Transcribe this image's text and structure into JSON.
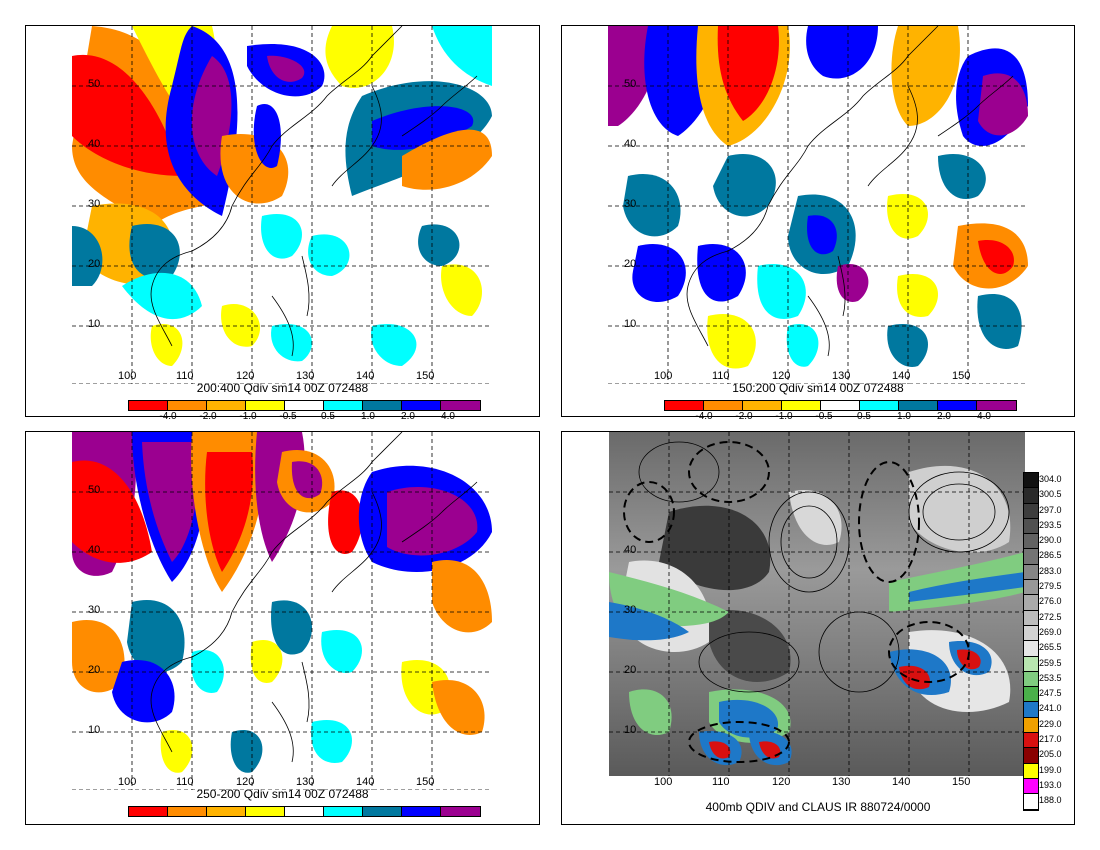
{
  "panels": [
    {
      "title": "200:400 Qdiv sm14 00Z 072488",
      "lat_labels": [
        "50",
        "40",
        "30",
        "20",
        "10"
      ],
      "lon_labels": [
        "100",
        "110",
        "120",
        "130",
        "140",
        "150"
      ]
    },
    {
      "title": "150:200 Qdiv sm14 00Z 072488",
      "lat_labels": [
        "50",
        "40",
        "30",
        "20",
        "10"
      ],
      "lon_labels": [
        "100",
        "110",
        "120",
        "130",
        "140",
        "150"
      ]
    },
    {
      "title": "250-200 Qdiv sm14 00Z 072488",
      "lat_labels": [
        "50",
        "40",
        "30",
        "20",
        "10"
      ],
      "lon_labels": [
        "100",
        "110",
        "120",
        "130",
        "140",
        "150"
      ]
    },
    {
      "title": "400mb QDIV and CLAUS IR 880724/0000",
      "lat_labels": [
        "40",
        "30",
        "20",
        "10"
      ],
      "lon_labels": [
        "100",
        "110",
        "120",
        "130",
        "140",
        "150"
      ]
    }
  ],
  "colorbar": {
    "colors": [
      "#ff0000",
      "#ff8c00",
      "#ffb300",
      "#ffff00",
      "#ffffff",
      "#00ffff",
      "#00789f",
      "#0000ff",
      "#9b0090"
    ],
    "labels": [
      "-4.0",
      "-2.0",
      "-1.0",
      "-0.5",
      "0.5",
      "1.0",
      "2.0",
      "4.0"
    ]
  },
  "ir_scale": {
    "labels": [
      "304.0",
      "300.5",
      "297.0",
      "293.5",
      "290.0",
      "286.5",
      "283.0",
      "279.5",
      "276.0",
      "272.5",
      "269.0",
      "265.5",
      "259.5",
      "253.5",
      "247.5",
      "241.0",
      "229.0",
      "217.0",
      "205.0",
      "199.0",
      "193.0",
      "188.0"
    ],
    "colors": [
      "#111111",
      "#2a2a2a",
      "#3d3d3d",
      "#505050",
      "#626262",
      "#747474",
      "#868686",
      "#989898",
      "#aaaaaa",
      "#bdbdbd",
      "#d2d2d2",
      "#e6e6e6",
      "#b8e6b0",
      "#80cc80",
      "#4ab04a",
      "#1e78c8",
      "#f0a000",
      "#d81010",
      "#8a0000",
      "#ffff00",
      "#ff00ff",
      "#ffffff"
    ]
  }
}
